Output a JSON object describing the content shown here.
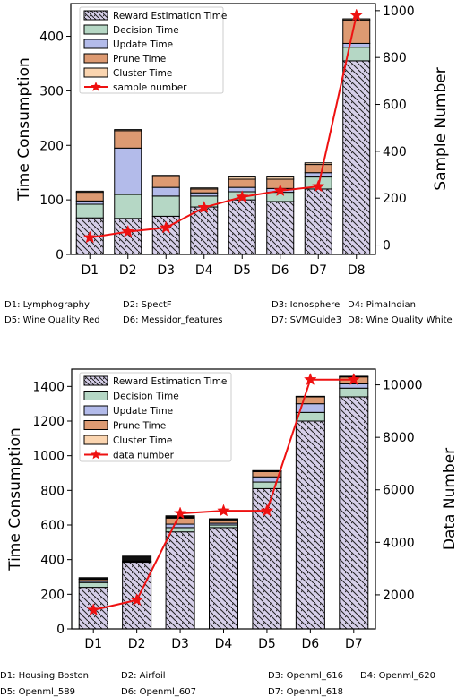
{
  "chart_data": [
    {
      "type": "bar",
      "stacked": true,
      "categories": [
        "D1",
        "D2",
        "D3",
        "D4",
        "D5",
        "D6",
        "D7",
        "D8"
      ],
      "ylabel": "Time Consumption",
      "ylim": [
        0,
        460
      ],
      "yticks": [
        0,
        100,
        200,
        300,
        400
      ],
      "y2label": "Sample Number",
      "y2lim": [
        -40,
        1030
      ],
      "y2ticks": [
        0,
        200,
        400,
        600,
        800,
        1000
      ],
      "legend_position": "upper-left",
      "series": [
        {
          "name": "Reward Estimation Time",
          "color": "#d6cfe9",
          "hatch": true,
          "values": [
            67,
            66,
            70,
            87,
            100,
            97,
            120,
            355
          ]
        },
        {
          "name": "Decision Time",
          "color": "#b5d7c5",
          "values": [
            25,
            44,
            37,
            20,
            15,
            17,
            22,
            25
          ]
        },
        {
          "name": "Update Time",
          "color": "#b3bbea",
          "values": [
            6,
            85,
            16,
            6,
            8,
            7,
            8,
            7
          ]
        },
        {
          "name": "Prune Time",
          "color": "#dd9a72",
          "values": [
            16,
            32,
            20,
            7,
            15,
            17,
            15,
            43
          ]
        },
        {
          "name": "Cluster Time",
          "color": "#fbd5b0",
          "values": [
            2,
            2,
            2,
            2,
            4,
            4,
            3,
            2
          ]
        }
      ],
      "line_series": {
        "name": "sample number",
        "color": "#ee1111",
        "axis": "right",
        "values": [
          32,
          57,
          74,
          160,
          205,
          232,
          250,
          980
        ]
      },
      "footnotes": [
        "D1: Lymphography",
        "D2: SpectF",
        "D3: Ionosphere",
        "D4: PimaIndian",
        "D5: Wine Quality Red",
        "D6: Messidor_features",
        "D7: SVMGuide3",
        "D8: Wine Quality White"
      ]
    },
    {
      "type": "bar",
      "stacked": true,
      "categories": [
        "D1",
        "D2",
        "D3",
        "D4",
        "D5",
        "D6",
        "D7"
      ],
      "ylabel": "Time Consumption",
      "ylim": [
        0,
        1500
      ],
      "yticks": [
        0,
        200,
        400,
        600,
        800,
        1000,
        1200,
        1400
      ],
      "y2label": "Data Number",
      "y2lim": [
        700,
        10600
      ],
      "y2ticks": [
        2000,
        4000,
        6000,
        8000,
        10000
      ],
      "legend_position": "upper-left",
      "series": [
        {
          "name": "Reward Estimation Time",
          "color": "#d6cfe9",
          "hatch": true,
          "values": [
            240,
            385,
            560,
            585,
            810,
            1200,
            1340
          ]
        },
        {
          "name": "Decision Time",
          "color": "#b5d7c5",
          "values": [
            28,
            5,
            25,
            15,
            38,
            50,
            50
          ]
        },
        {
          "name": "Update Time",
          "color": "#b3bbea",
          "values": [
            8,
            2,
            20,
            10,
            30,
            50,
            25
          ]
        },
        {
          "name": "Prune Time",
          "color": "#dd9a72",
          "values": [
            10,
            0,
            35,
            20,
            30,
            40,
            40
          ]
        },
        {
          "name": "Cluster Time",
          "color": "#fbd5b0",
          "values": [
            2,
            0,
            5,
            2,
            4,
            3,
            4
          ]
        },
        {
          "name": "",
          "color": "#111111",
          "values": [
            8,
            28,
            8,
            4,
            2,
            0,
            0
          ]
        }
      ],
      "line_series": {
        "name": "data number",
        "color": "#ee1111",
        "axis": "right",
        "values": [
          1420,
          1800,
          5100,
          5200,
          5200,
          10200,
          10200
        ]
      },
      "footnotes": [
        "D1: Housing Boston",
        "D2: Airfoil",
        "D3: Openml_616",
        "D4: Openml_620",
        "D5: Openml_589",
        "D6: Openml_607",
        "D7: Openml_618"
      ]
    }
  ]
}
